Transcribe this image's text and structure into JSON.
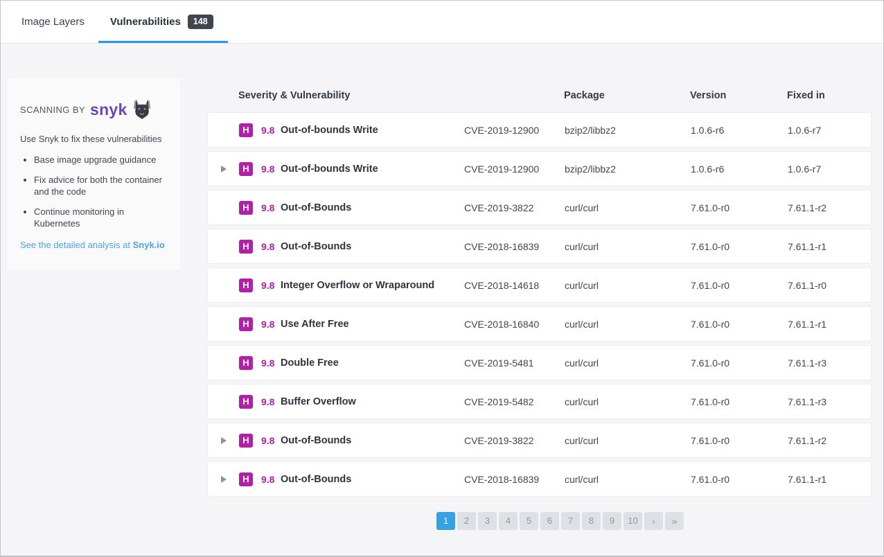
{
  "tabs": {
    "image_layers": {
      "label": "Image Layers"
    },
    "vulnerabilities": {
      "label": "Vulnerabilities",
      "badge": "148",
      "active": true
    }
  },
  "sidebar": {
    "scanning_by": "SCANNING BY",
    "brand": "snyk",
    "brand_icon": "snyk-dog-mascot-icon",
    "intro": "Use Snyk to fix these vulnerabilities",
    "bullets": [
      "Base image upgrade guidance",
      "Fix advice for both the container and the code",
      "Continue monitoring in Kubernetes"
    ],
    "link_text": "See the detailed analysis at ",
    "link_brand": "Snyk.io"
  },
  "table": {
    "headers": [
      "Severity & Vulnerability",
      "Package",
      "Version",
      "Fixed in"
    ],
    "rows": [
      {
        "expandable": false,
        "severity": "H",
        "score": "9.8",
        "name": "Out-of-bounds Write",
        "cve": "CVE-2019-12900",
        "package": "bzip2/libbz2",
        "version": "1.0.6-r6",
        "fixed_in": "1.0.6-r7"
      },
      {
        "expandable": true,
        "severity": "H",
        "score": "9.8",
        "name": "Out-of-bounds Write",
        "cve": "CVE-2019-12900",
        "package": "bzip2/libbz2",
        "version": "1.0.6-r6",
        "fixed_in": "1.0.6-r7"
      },
      {
        "expandable": false,
        "severity": "H",
        "score": "9.8",
        "name": "Out-of-Bounds",
        "cve": "CVE-2019-3822",
        "package": "curl/curl",
        "version": "7.61.0-r0",
        "fixed_in": "7.61.1-r2"
      },
      {
        "expandable": false,
        "severity": "H",
        "score": "9.8",
        "name": "Out-of-Bounds",
        "cve": "CVE-2018-16839",
        "package": "curl/curl",
        "version": "7.61.0-r0",
        "fixed_in": "7.61.1-r1"
      },
      {
        "expandable": false,
        "severity": "H",
        "score": "9.8",
        "name": "Integer Overflow or Wraparound",
        "cve": "CVE-2018-14618",
        "package": "curl/curl",
        "version": "7.61.0-r0",
        "fixed_in": "7.61.1-r0"
      },
      {
        "expandable": false,
        "severity": "H",
        "score": "9.8",
        "name": "Use After Free",
        "cve": "CVE-2018-16840",
        "package": "curl/curl",
        "version": "7.61.0-r0",
        "fixed_in": "7.61.1-r1"
      },
      {
        "expandable": false,
        "severity": "H",
        "score": "9.8",
        "name": "Double Free",
        "cve": "CVE-2019-5481",
        "package": "curl/curl",
        "version": "7.61.0-r0",
        "fixed_in": "7.61.1-r3"
      },
      {
        "expandable": false,
        "severity": "H",
        "score": "9.8",
        "name": "Buffer Overflow",
        "cve": "CVE-2019-5482",
        "package": "curl/curl",
        "version": "7.61.0-r0",
        "fixed_in": "7.61.1-r3"
      },
      {
        "expandable": true,
        "severity": "H",
        "score": "9.8",
        "name": "Out-of-Bounds",
        "cve": "CVE-2019-3822",
        "package": "curl/curl",
        "version": "7.61.0-r0",
        "fixed_in": "7.61.1-r2"
      },
      {
        "expandable": true,
        "severity": "H",
        "score": "9.8",
        "name": "Out-of-Bounds",
        "cve": "CVE-2018-16839",
        "package": "curl/curl",
        "version": "7.61.0-r0",
        "fixed_in": "7.61.1-r1"
      }
    ]
  },
  "pagination": {
    "pages": [
      "1",
      "2",
      "3",
      "4",
      "5",
      "6",
      "7",
      "8",
      "9",
      "10"
    ],
    "active": "1",
    "next_label": "›",
    "last_label": "»"
  },
  "colors": {
    "severity_high": "#b020a8",
    "active_tab_underline": "#2496ed",
    "link_blue": "#4aa3e2",
    "pagination_active": "#34a2e4",
    "badge_bg": "#40454e",
    "snyk_purple": "#6a46b8",
    "page_bg": "#f5f5f7",
    "card_bg": "#fafafa"
  }
}
